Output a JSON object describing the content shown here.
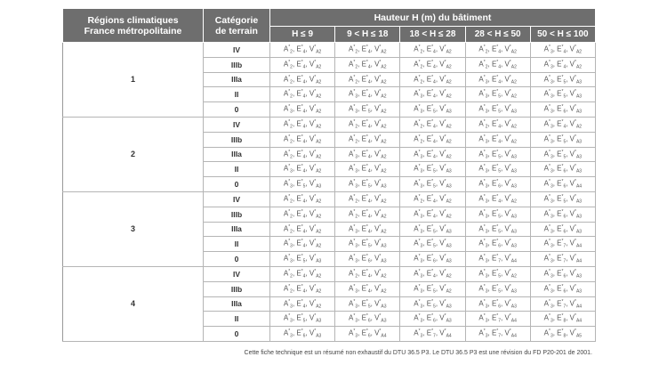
{
  "header": {
    "col_region": [
      "Régions climatiques",
      "France métropolitaine"
    ],
    "col_category": [
      "Catégorie",
      "de terrain"
    ],
    "height_group": "Hauteur H (m) du bâtiment",
    "height_ranges": [
      "H ≤ 9",
      "9 < H ≤ 18",
      "18 < H ≤ 28",
      "28 < H ≤ 50",
      "50 < H ≤ 100"
    ]
  },
  "regions": [
    {
      "label": "1",
      "rows": [
        {
          "cat": "IV",
          "cells": [
            [
              "2",
              "4",
              "A2"
            ],
            [
              "2",
              "4",
              "A2"
            ],
            [
              "2",
              "4",
              "A2"
            ],
            [
              "2",
              "4",
              "A2"
            ],
            [
              "3",
              "4",
              "A2"
            ]
          ]
        },
        {
          "cat": "IIIb",
          "cells": [
            [
              "2",
              "4",
              "A2"
            ],
            [
              "2",
              "4",
              "A2"
            ],
            [
              "2",
              "4",
              "A2"
            ],
            [
              "2",
              "4",
              "A2"
            ],
            [
              "3",
              "4",
              "A2"
            ]
          ]
        },
        {
          "cat": "IIIa",
          "cells": [
            [
              "2",
              "4",
              "A2"
            ],
            [
              "2",
              "4",
              "A2"
            ],
            [
              "2",
              "4",
              "A2"
            ],
            [
              "3",
              "4",
              "A2"
            ],
            [
              "3",
              "5",
              "A3"
            ]
          ]
        },
        {
          "cat": "II",
          "cells": [
            [
              "2",
              "4",
              "A2"
            ],
            [
              "3",
              "4",
              "A2"
            ],
            [
              "3",
              "4",
              "A2"
            ],
            [
              "3",
              "5",
              "A2"
            ],
            [
              "3",
              "5",
              "A3"
            ]
          ]
        },
        {
          "cat": "0",
          "cells": [
            [
              "3",
              "4",
              "A2"
            ],
            [
              "3",
              "5",
              "A2"
            ],
            [
              "3",
              "5",
              "A3"
            ],
            [
              "3",
              "5",
              "A3"
            ],
            [
              "3",
              "6",
              "A3"
            ]
          ]
        }
      ]
    },
    {
      "label": "2",
      "rows": [
        {
          "cat": "IV",
          "cells": [
            [
              "2",
              "4",
              "A2"
            ],
            [
              "2",
              "4",
              "A2"
            ],
            [
              "2",
              "4",
              "A2"
            ],
            [
              "2",
              "4",
              "A2"
            ],
            [
              "3",
              "4",
              "A2"
            ]
          ]
        },
        {
          "cat": "IIIb",
          "cells": [
            [
              "2",
              "4",
              "A2"
            ],
            [
              "2",
              "4",
              "A2"
            ],
            [
              "2",
              "4",
              "A2"
            ],
            [
              "3",
              "4",
              "A2"
            ],
            [
              "3",
              "5",
              "A3"
            ]
          ]
        },
        {
          "cat": "IIIa",
          "cells": [
            [
              "2",
              "4",
              "A2"
            ],
            [
              "3",
              "4",
              "A2"
            ],
            [
              "3",
              "4",
              "A2"
            ],
            [
              "3",
              "5",
              "A3"
            ],
            [
              "3",
              "5",
              "A3"
            ]
          ]
        },
        {
          "cat": "II",
          "cells": [
            [
              "3",
              "4",
              "A2"
            ],
            [
              "3",
              "4",
              "A2"
            ],
            [
              "3",
              "5",
              "A3"
            ],
            [
              "3",
              "5",
              "A3"
            ],
            [
              "3",
              "6",
              "A3"
            ]
          ]
        },
        {
          "cat": "0",
          "cells": [
            [
              "3",
              "5",
              "A3"
            ],
            [
              "3",
              "5",
              "A3"
            ],
            [
              "3",
              "5",
              "A3"
            ],
            [
              "3",
              "6",
              "A3"
            ],
            [
              "3",
              "6",
              "A4"
            ]
          ]
        }
      ]
    },
    {
      "label": "3",
      "rows": [
        {
          "cat": "IV",
          "cells": [
            [
              "2",
              "4",
              "A2"
            ],
            [
              "2",
              "4",
              "A2"
            ],
            [
              "2",
              "4",
              "A2"
            ],
            [
              "3",
              "4",
              "A2"
            ],
            [
              "3",
              "5",
              "A3"
            ]
          ]
        },
        {
          "cat": "IIIb",
          "cells": [
            [
              "2",
              "4",
              "A2"
            ],
            [
              "2",
              "4",
              "A2"
            ],
            [
              "3",
              "4",
              "A2"
            ],
            [
              "3",
              "5",
              "A3"
            ],
            [
              "3",
              "6",
              "A3"
            ]
          ]
        },
        {
          "cat": "IIIa",
          "cells": [
            [
              "2",
              "4",
              "A2"
            ],
            [
              "3",
              "4",
              "A2"
            ],
            [
              "3",
              "5",
              "A3"
            ],
            [
              "3",
              "5",
              "A3"
            ],
            [
              "3",
              "6",
              "A3"
            ]
          ]
        },
        {
          "cat": "II",
          "cells": [
            [
              "3",
              "4",
              "A2"
            ],
            [
              "3",
              "5",
              "A3"
            ],
            [
              "3",
              "5",
              "A3"
            ],
            [
              "3",
              "6",
              "A3"
            ],
            [
              "3",
              "7",
              "A4"
            ]
          ]
        },
        {
          "cat": "0",
          "cells": [
            [
              "3",
              "5",
              "A3"
            ],
            [
              "3",
              "6",
              "A3"
            ],
            [
              "3",
              "6",
              "A3"
            ],
            [
              "3",
              "7",
              "A4"
            ],
            [
              "3",
              "7",
              "A4"
            ]
          ]
        }
      ]
    },
    {
      "label": "4",
      "rows": [
        {
          "cat": "IV",
          "cells": [
            [
              "2",
              "4",
              "A2"
            ],
            [
              "2",
              "4",
              "A2"
            ],
            [
              "3",
              "4",
              "A2"
            ],
            [
              "3",
              "5",
              "A2"
            ],
            [
              "3",
              "6",
              "A3"
            ]
          ]
        },
        {
          "cat": "IIIb",
          "cells": [
            [
              "2",
              "4",
              "A2"
            ],
            [
              "3",
              "4",
              "A2"
            ],
            [
              "3",
              "5",
              "A2"
            ],
            [
              "3",
              "5",
              "A3"
            ],
            [
              "3",
              "6",
              "A3"
            ]
          ]
        },
        {
          "cat": "IIIa",
          "cells": [
            [
              "3",
              "4",
              "A2"
            ],
            [
              "3",
              "5",
              "A3"
            ],
            [
              "3",
              "5",
              "A3"
            ],
            [
              "3",
              "6",
              "A3"
            ],
            [
              "3",
              "7",
              "A4"
            ]
          ]
        },
        {
          "cat": "II",
          "cells": [
            [
              "3",
              "5",
              "A3"
            ],
            [
              "3",
              "6",
              "A3"
            ],
            [
              "3",
              "6",
              "A3"
            ],
            [
              "3",
              "7",
              "A4"
            ],
            [
              "3",
              "8",
              "A4"
            ]
          ]
        },
        {
          "cat": "0",
          "cells": [
            [
              "3",
              "6",
              "A3"
            ],
            [
              "3",
              "6",
              "A4"
            ],
            [
              "3",
              "7",
              "A4"
            ],
            [
              "3",
              "7",
              "A4"
            ],
            [
              "3",
              "8",
              "A5"
            ]
          ]
        }
      ]
    }
  ],
  "footnote": "Cette fiche technique est un résumé  non exhaustif du DTU 36.5 P3. Le DTU 36.5 P3 est une révision du FD P20-201 de 2001.",
  "colors": {
    "header_bg": "#6e6e6e",
    "header_text": "#ffffff",
    "grid": "#b5b5b5"
  }
}
